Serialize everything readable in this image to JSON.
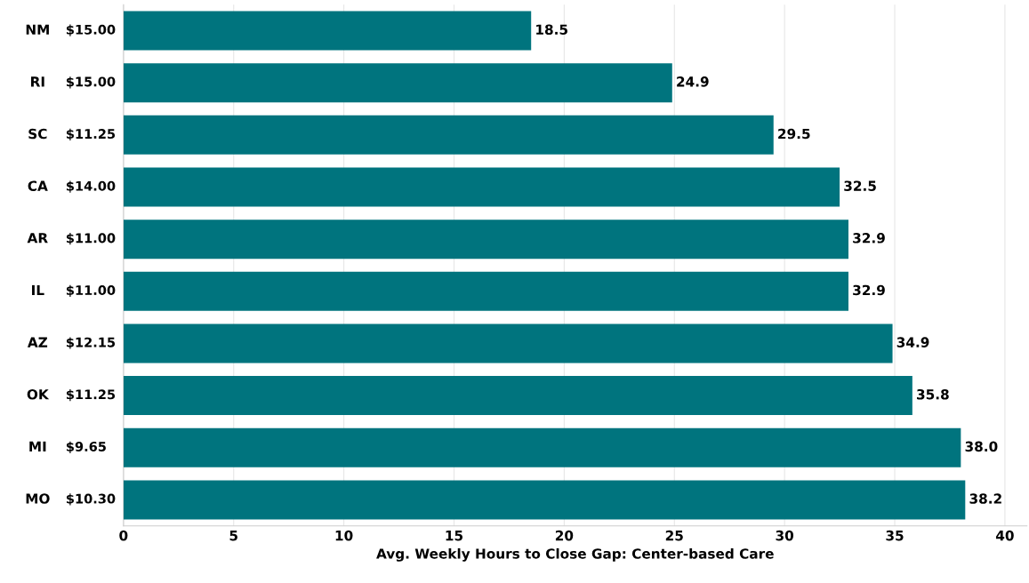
{
  "chart_data": {
    "type": "bar",
    "orientation": "horizontal",
    "categories": [
      "NM",
      "RI",
      "SC",
      "CA",
      "AR",
      "IL",
      "AZ",
      "OK",
      "MI",
      "MO"
    ],
    "y2_categories": [
      "$15.00",
      "$15.00",
      "$11.25",
      "$14.00",
      "$11.00",
      "$11.00",
      "$12.15",
      "$11.25",
      "$9.65",
      "$10.30"
    ],
    "values": [
      18.5,
      24.9,
      29.5,
      32.5,
      32.9,
      32.9,
      34.9,
      35.8,
      38.0,
      38.2
    ],
    "color": "#00747e",
    "xlabel": "Avg. Weekly Hours to Close Gap: Center-based Care",
    "xlim": [
      0,
      41
    ],
    "xticks": [
      0,
      5,
      10,
      15,
      20,
      25,
      30,
      35,
      40
    ],
    "value_labels": [
      "18.5",
      "24.9",
      "29.5",
      "32.5",
      "32.9",
      "32.9",
      "34.9",
      "35.8",
      "38.0",
      "38.2"
    ],
    "grid": "x"
  }
}
